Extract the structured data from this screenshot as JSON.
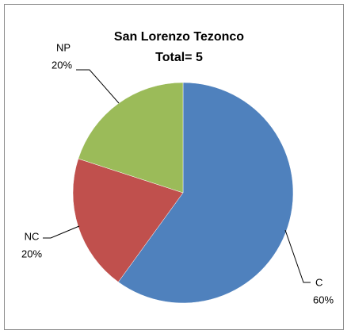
{
  "chart_data": {
    "type": "pie",
    "title": "San Lorenzo Tezonco",
    "subtitle": "Total=  5",
    "categories": [
      "C",
      "NC",
      "NP"
    ],
    "values": [
      60,
      20,
      20
    ],
    "value_labels": [
      "60%",
      "20%",
      "20%"
    ],
    "colors": [
      "#4f81bd",
      "#c0504d",
      "#9bbb59"
    ]
  }
}
